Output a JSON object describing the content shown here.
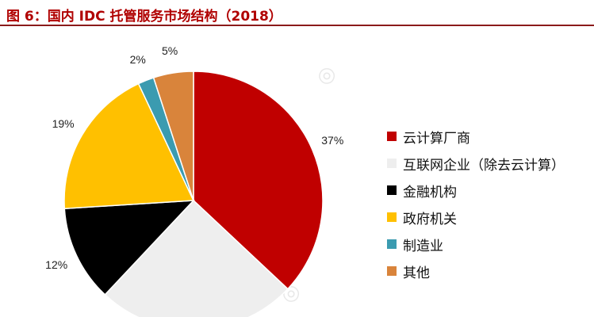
{
  "header": {
    "title": "图 6：国内 IDC 托管服务市场结构（2018）"
  },
  "chart_data": {
    "type": "pie",
    "categories": [
      "云计算厂商",
      "互联网企业（除去云计算）",
      "金融机构",
      "政府机关",
      "制造业",
      "其他"
    ],
    "values": [
      37,
      25,
      12,
      19,
      2,
      5
    ],
    "labels": [
      "37%",
      "",
      "12%",
      "19%",
      "2%",
      "5%"
    ],
    "colors": [
      "#c00000",
      "#eeeeee",
      "#000000",
      "#ffc000",
      "#3b9bb0",
      "#d9843b"
    ],
    "legend_position": "right",
    "start_angle": "12 o'clock",
    "direction": "clockwise"
  }
}
